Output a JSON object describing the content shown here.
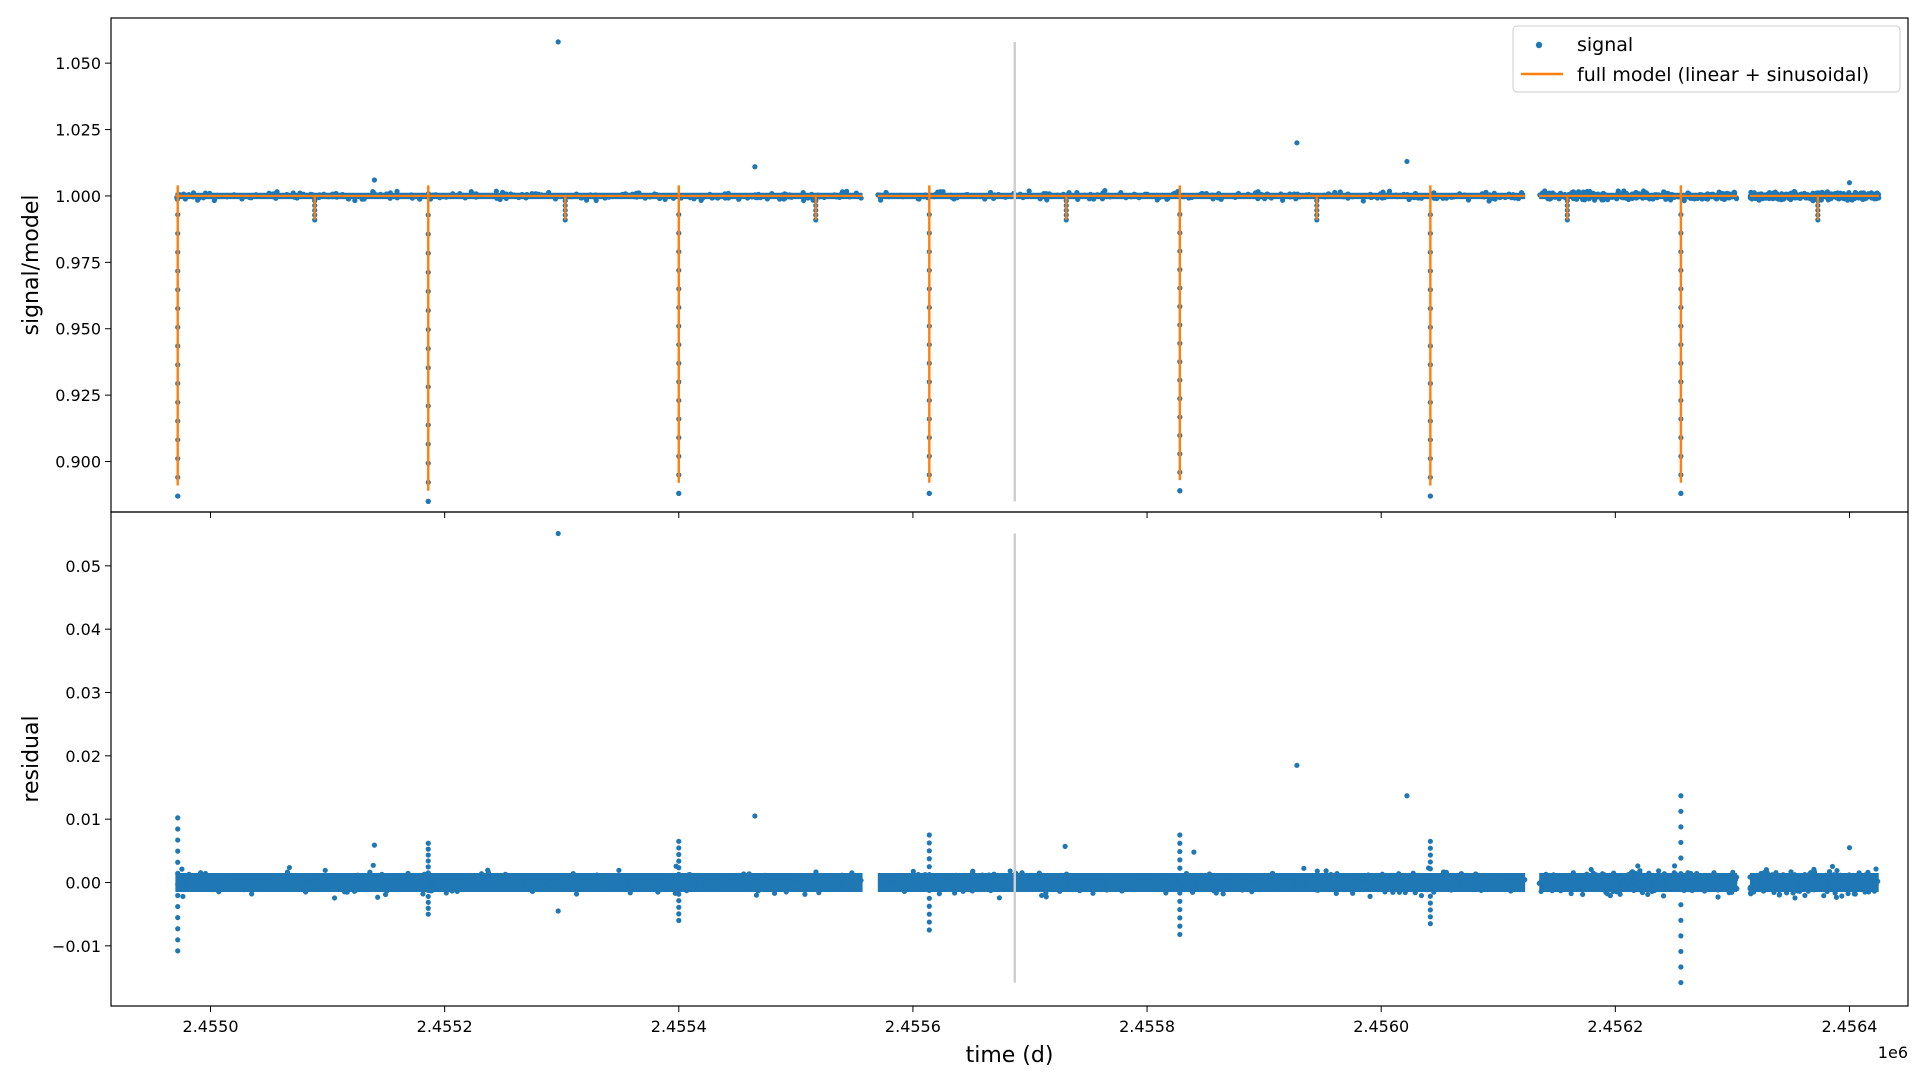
{
  "chart_data": [
    {
      "type": "scatter",
      "xlabel": "",
      "ylabel": "signal/model",
      "xlim": [
        2454915,
        2456450
      ],
      "ylim": [
        0.881,
        1.067
      ],
      "x_ticks": [
        2454950,
        2455000,
        2455050,
        2455100,
        2455150,
        2455200,
        2455250,
        2455300,
        2455350,
        2455400,
        2455450,
        2455500,
        2455550,
        2455600,
        2455650,
        2455700,
        2455750,
        2455800,
        2455850,
        2455900,
        2455950,
        2456000,
        2456050,
        2456100,
        2456150,
        2456200,
        2456250,
        2456300,
        2456350,
        2456400
      ],
      "y_ticks": [
        "0.900",
        "0.925",
        "0.950",
        "0.975",
        "1.000",
        "1.025",
        "1.050"
      ],
      "y_tick_values": [
        0.9,
        0.925,
        0.95,
        0.975,
        1.0,
        1.025,
        1.05
      ],
      "vline_x": 2455687,
      "legend": {
        "position": "top-right",
        "entries": [
          "signal",
          "full model (linear + sinusoidal)"
        ]
      },
      "series": [
        {
          "name": "signal",
          "kind": "scatter",
          "color": "#1f77b4",
          "baseline": 1.0,
          "segments": [
            [
              2454970,
              2455557
            ],
            [
              2455570,
              2456123
            ],
            [
              2456135,
              2456304
            ],
            [
              2456315,
              2456425
            ]
          ],
          "primary_eclipses": [
            {
              "x": 2454972,
              "depth": 0.887
            },
            {
              "x": 2455186,
              "depth": 0.885
            },
            {
              "x": 2455400,
              "depth": 0.888
            },
            {
              "x": 2455614,
              "depth": 0.888
            },
            {
              "x": 2455828,
              "depth": 0.889
            },
            {
              "x": 2456042,
              "depth": 0.887
            },
            {
              "x": 2456256,
              "depth": 0.888
            }
          ],
          "secondary_eclipses": [
            {
              "x": 2455089,
              "depth": 0.991
            },
            {
              "x": 2455303,
              "depth": 0.991
            },
            {
              "x": 2455517,
              "depth": 0.991
            },
            {
              "x": 2455731,
              "depth": 0.991
            },
            {
              "x": 2455945,
              "depth": 0.991
            },
            {
              "x": 2456159,
              "depth": 0.991
            },
            {
              "x": 2456373,
              "depth": 0.991
            }
          ],
          "outliers": [
            {
              "x": 2455297,
              "y": 1.058
            },
            {
              "x": 2455465,
              "y": 1.011
            },
            {
              "x": 2455140,
              "y": 1.006
            },
            {
              "x": 2455928,
              "y": 1.02
            },
            {
              "x": 2456022,
              "y": 1.013
            },
            {
              "x": 2456400,
              "y": 1.005
            }
          ]
        },
        {
          "name": "full model (linear + sinusoidal)",
          "kind": "line",
          "color": "#ff7f0e"
        }
      ]
    },
    {
      "type": "scatter",
      "xlabel": "time (d)",
      "ylabel": "residual",
      "x_offset_label": "1e6",
      "xlim": [
        2454915,
        2456450
      ],
      "ylim": [
        -0.0195,
        0.0585
      ],
      "x_ticks": [
        "2.4550",
        "2.4552",
        "2.4554",
        "2.4556",
        "2.4558",
        "2.4560",
        "2.4562",
        "2.4564"
      ],
      "x_tick_values": [
        2455000,
        2455200,
        2455400,
        2455600,
        2455800,
        2456000,
        2456200,
        2456400
      ],
      "y_ticks": [
        "−0.01",
        "0.00",
        "0.01",
        "0.02",
        "0.03",
        "0.04",
        "0.05"
      ],
      "y_tick_values": [
        -0.01,
        0.0,
        0.01,
        0.02,
        0.03,
        0.04,
        0.05
      ],
      "vline_x": 2455687,
      "series": [
        {
          "kind": "scatter",
          "color": "#1f77b4",
          "baseline": 0.0,
          "segments": [
            [
              2454970,
              2455557
            ],
            [
              2455570,
              2456123
            ],
            [
              2456135,
              2456304
            ],
            [
              2456315,
              2456425
            ]
          ],
          "spikes": [
            {
              "x": 2454972,
              "lo": -0.0108,
              "hi": 0.0102
            },
            {
              "x": 2455186,
              "lo": -0.005,
              "hi": 0.0062
            },
            {
              "x": 2455400,
              "lo": -0.006,
              "hi": 0.0065
            },
            {
              "x": 2455614,
              "lo": -0.0075,
              "hi": 0.0075
            },
            {
              "x": 2455828,
              "lo": -0.0082,
              "hi": 0.0075
            },
            {
              "x": 2456042,
              "lo": -0.0065,
              "hi": 0.0065
            },
            {
              "x": 2456256,
              "lo": -0.0158,
              "hi": 0.0137
            }
          ],
          "outliers": [
            {
              "x": 2455297,
              "y": 0.0551
            },
            {
              "x": 2455465,
              "y": 0.0105
            },
            {
              "x": 2455140,
              "y": 0.0059
            },
            {
              "x": 2455928,
              "y": 0.0185
            },
            {
              "x": 2456022,
              "y": 0.0137
            },
            {
              "x": 2456400,
              "y": 0.0055
            },
            {
              "x": 2455297,
              "y": -0.0045
            },
            {
              "x": 2455730,
              "y": 0.0057
            },
            {
              "x": 2455840,
              "y": 0.0048
            }
          ]
        }
      ]
    }
  ]
}
